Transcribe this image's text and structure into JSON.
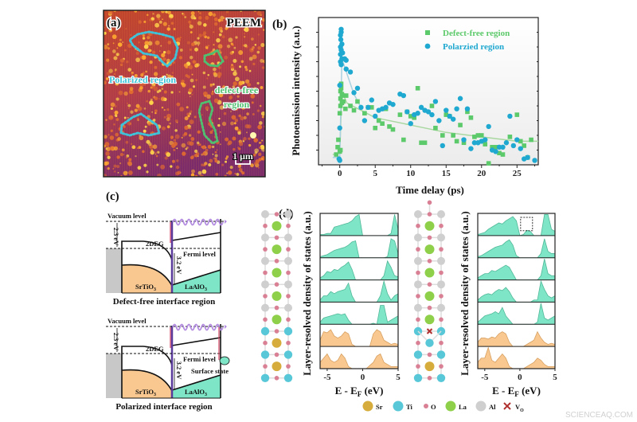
{
  "panels": {
    "a": {
      "label": "(a)",
      "title": "PEEM",
      "polarized_label": "Polarized region",
      "defect_free_label_1": "defect-free",
      "defect_free_label_2": "region",
      "scale_bar": "1 μm",
      "colors": {
        "polarized": "#3ec3d8",
        "defect_free": "#4fbf70"
      }
    },
    "b": {
      "label": "(b)"
    },
    "c": {
      "label": "(c)",
      "top": {
        "vacuum": "Vacuum level",
        "gap": "2.3 eV",
        "twodeg": "2DEG",
        "fermi": "Fermi level",
        "band": "3.2 eV",
        "sto": "SrTiO",
        "sto_sub": "3",
        "lao": "LaAlO",
        "lao_sub": "3",
        "caption": "Defect-free interface region"
      },
      "bottom": {
        "vacuum": "Vacuum level",
        "gap": "2.3 eV",
        "twodeg": "2DEG",
        "fermi": "Fermi level",
        "band": "3.2 eV",
        "surface": "Surface state",
        "sto": "SrTiO",
        "sto_sub": "3",
        "lao": "LaAlO",
        "lao_sub": "3",
        "caption": "Polarized interface region"
      },
      "colors": {
        "sto": "#f8c890",
        "lao": "#7ee6c6",
        "substrate": "#c8c8c8",
        "photon": "#b28ae0"
      }
    },
    "d": {
      "label": "(d)",
      "legend": [
        {
          "name": "Sr",
          "color": "#d6ad3c"
        },
        {
          "name": "Ti",
          "color": "#58c8d8"
        },
        {
          "name": "O",
          "color": "#d98095"
        },
        {
          "name": "La",
          "color": "#8fd04a"
        },
        {
          "name": "Al",
          "color": "#cfcfcf"
        },
        {
          "name": "V",
          "sub": "O",
          "color": "#b03030",
          "icon": "cross"
        }
      ]
    }
  },
  "chart_data": [
    {
      "type": "scatter",
      "xlabel": "Time delay (ps)",
      "ylabel": "Photoemission intensity (a.u.)",
      "xlim": [
        -3,
        28
      ],
      "ylim": [
        0,
        1
      ],
      "xticks": [
        0,
        5,
        10,
        15,
        20,
        25
      ],
      "grid": false,
      "legend_position": "top-right",
      "series": [
        {
          "name": "Defect-free region",
          "color": "#5cc96a",
          "marker": "square",
          "points": [
            [
              -0.5,
              0.07
            ],
            [
              -0.3,
              0.12
            ],
            [
              -0.2,
              0.17
            ],
            [
              0,
              0.09
            ],
            [
              0.1,
              0.1
            ],
            [
              0,
              0.35
            ],
            [
              0.1,
              0.4
            ],
            [
              0.1,
              0.45
            ],
            [
              0.1,
              0.5
            ],
            [
              0.2,
              0.52
            ],
            [
              0.2,
              0.55
            ],
            [
              0.3,
              0.48
            ],
            [
              0.3,
              0.42
            ],
            [
              0.4,
              0.47
            ],
            [
              0.5,
              0.43
            ],
            [
              0.8,
              0.38
            ],
            [
              0.9,
              0.47
            ],
            [
              1.5,
              0.4
            ],
            [
              2,
              0.37
            ],
            [
              2.5,
              0.43
            ],
            [
              3.5,
              0.35
            ],
            [
              4,
              0.39
            ],
            [
              4.5,
              0.39
            ],
            [
              5,
              0.25
            ],
            [
              5.5,
              0.3
            ],
            [
              6,
              0.28
            ],
            [
              6.5,
              0.38
            ],
            [
              7,
              0.26
            ],
            [
              7.5,
              0.24
            ],
            [
              8.5,
              0.34
            ],
            [
              9,
              0.17
            ],
            [
              9.5,
              0.36
            ],
            [
              10,
              0.33
            ],
            [
              10.5,
              0.32
            ],
            [
              11,
              0.52
            ],
            [
              11.5,
              0.15
            ],
            [
              12,
              0.15
            ],
            [
              13,
              0.4
            ],
            [
              13.5,
              0.25
            ],
            [
              14.5,
              0.2
            ],
            [
              15,
              0.34
            ],
            [
              15.5,
              0.33
            ],
            [
              16,
              0.2
            ],
            [
              16.5,
              0.16
            ],
            [
              17,
              0.27
            ],
            [
              17.5,
              0.15
            ],
            [
              18,
              0.36
            ],
            [
              18.5,
              0.32
            ],
            [
              19,
              0.19
            ],
            [
              19.5,
              0.2
            ],
            [
              20,
              0.2
            ],
            [
              20.5,
              0.14
            ],
            [
              21,
              0.01
            ],
            [
              21.5,
              0.12
            ],
            [
              22,
              0.12
            ],
            [
              22.5,
              0.08
            ],
            [
              23,
              0.07
            ],
            [
              24,
              0.19
            ],
            [
              25,
              0.34
            ],
            [
              25.5,
              0.16
            ],
            [
              26,
              0.13
            ],
            [
              26.5,
              0.05
            ],
            [
              27,
              0.17
            ]
          ],
          "fit": [
            [
              -1,
              0.07
            ],
            [
              0,
              0.08
            ],
            [
              0.3,
              0.5
            ],
            [
              1,
              0.42
            ],
            [
              3,
              0.37
            ],
            [
              5,
              0.32
            ],
            [
              10,
              0.27
            ],
            [
              15,
              0.22
            ],
            [
              20,
              0.19
            ],
            [
              25,
              0.16
            ],
            [
              28,
              0.16
            ]
          ]
        },
        {
          "name": "Polarzied region",
          "color": "#1fa8d0",
          "marker": "circle",
          "points": [
            [
              -0.1,
              0.04
            ],
            [
              0,
              0.03
            ],
            [
              0,
              0.25
            ],
            [
              0,
              0.54
            ],
            [
              0.1,
              0.7
            ],
            [
              0.1,
              0.75
            ],
            [
              0.1,
              0.8
            ],
            [
              0.15,
              0.85
            ],
            [
              0.2,
              0.9
            ],
            [
              0.2,
              0.92
            ],
            [
              0.1,
              0.88
            ],
            [
              0.2,
              0.78
            ],
            [
              0.3,
              0.82
            ],
            [
              0.3,
              0.72
            ],
            [
              0.2,
              0.68
            ],
            [
              0.4,
              0.76
            ],
            [
              0.7,
              0.72
            ],
            [
              0.9,
              0.71
            ],
            [
              0.9,
              0.65
            ],
            [
              1.5,
              0.63
            ],
            [
              2,
              0.49
            ],
            [
              2.5,
              0.52
            ],
            [
              3,
              0.39
            ],
            [
              3.5,
              0.3
            ],
            [
              4,
              0.39
            ],
            [
              4.5,
              0.44
            ],
            [
              5,
              0.33
            ],
            [
              5.5,
              0.37
            ],
            [
              6,
              0.38
            ],
            [
              6.5,
              0.39
            ],
            [
              7,
              0.42
            ],
            [
              7.5,
              0.41
            ],
            [
              8.5,
              0.48
            ],
            [
              9,
              0.47
            ],
            [
              9.5,
              0.36
            ],
            [
              10,
              0.28
            ],
            [
              10.5,
              0.34
            ],
            [
              11,
              0.35
            ],
            [
              11.5,
              0.39
            ],
            [
              12,
              0.37
            ],
            [
              12.5,
              0.36
            ],
            [
              13,
              0.34
            ],
            [
              13.5,
              0.43
            ],
            [
              14,
              0.3
            ],
            [
              14.5,
              0.13
            ],
            [
              15,
              0.37
            ],
            [
              15.5,
              0.33
            ],
            [
              16,
              0.31
            ],
            [
              16.5,
              0.38
            ],
            [
              17,
              0.45
            ],
            [
              17.5,
              0.17
            ],
            [
              18,
              0.38
            ],
            [
              18.5,
              0.11
            ],
            [
              19,
              0.15
            ],
            [
              19.5,
              0.15
            ],
            [
              20,
              0.16
            ],
            [
              20.5,
              0.17
            ],
            [
              21,
              0.26
            ],
            [
              21.5,
              0.1
            ],
            [
              22,
              0.09
            ],
            [
              22.5,
              0.12
            ],
            [
              23,
              0.12
            ],
            [
              23.5,
              0.15
            ],
            [
              24,
              0.33
            ],
            [
              24.5,
              0.13
            ],
            [
              25,
              0.17
            ],
            [
              25.5,
              0.11
            ],
            [
              26,
              0.04
            ],
            [
              26.5,
              0.05
            ],
            [
              27.5,
              0.03
            ]
          ],
          "fit": [
            [
              -1,
              0.05
            ],
            [
              0,
              0.05
            ],
            [
              0.3,
              0.72
            ],
            [
              1,
              0.62
            ],
            [
              2,
              0.48
            ],
            [
              3,
              0.39
            ]
          ]
        }
      ]
    },
    {
      "type": "area",
      "ylabel": "Layer-resolved density of states (a.u.)",
      "xlabel_main": "E - E",
      "xlabel_sub": "F",
      "xlabel_unit": " (eV)",
      "xlim": [
        -6,
        5
      ],
      "xticks": [
        -5,
        0,
        5
      ],
      "energy_step": 0.5,
      "rows": [
        {
          "color": "#7ee6c6",
          "dos": [
            0.05,
            0.05,
            0.1,
            0.1,
            0.4,
            0.45,
            0.5,
            0.55,
            0.6,
            0.7,
            0.9,
            1.0,
            0,
            0,
            0,
            0,
            0,
            0,
            0,
            0,
            0.1,
            1.0,
            0.3
          ]
        },
        {
          "color": "#7ee6c6",
          "dos": [
            0.05,
            0.1,
            0.15,
            0.25,
            0.35,
            0.4,
            0.45,
            0.5,
            0.6,
            0.75,
            0.8,
            0,
            0,
            0,
            0,
            0,
            0,
            0,
            0,
            0.05,
            0.9,
            0.8,
            0.2
          ]
        },
        {
          "color": "#7ee6c6",
          "dos": [
            0.1,
            0.2,
            0.4,
            0.35,
            0.5,
            0.45,
            0.6,
            0.7,
            0.85,
            0.5,
            0,
            0,
            0,
            0,
            0,
            0,
            0,
            0,
            0.2,
            0.9,
            0.6,
            0.2,
            0.15
          ]
        },
        {
          "color": "#7ee6c6",
          "dos": [
            0.1,
            0.3,
            0.3,
            0.5,
            0.4,
            0.5,
            0.55,
            0.6,
            0.9,
            0.3,
            0,
            0,
            0,
            0,
            0,
            0,
            0,
            0.3,
            1.0,
            0.4,
            0.1,
            0.3,
            0.4
          ]
        },
        {
          "color": "#7ee6c6",
          "dos": [
            0.1,
            0.3,
            0.35,
            0.4,
            0.45,
            0.5,
            0.45,
            0.5,
            0.2,
            0,
            0,
            0,
            0,
            0,
            0,
            0.05,
            0,
            0.9,
            0.9,
            0.1,
            0.2,
            0.3,
            0.4
          ]
        },
        {
          "color": "#f8c890",
          "dos": [
            0.3,
            0.7,
            0.65,
            0.8,
            0.5,
            0.4,
            0.5,
            0.7,
            0.6,
            0.1,
            0,
            0,
            0,
            0,
            0,
            0.6,
            0.8,
            0.7,
            0.3,
            0.2,
            0.1,
            0.15,
            0.1
          ]
        },
        {
          "color": "#f8c890",
          "dos": [
            0.3,
            0.5,
            0.7,
            0.4,
            0.3,
            0.4,
            0.7,
            0.5,
            0.1,
            0,
            0,
            0,
            0,
            0,
            0.15,
            0.3,
            0.6,
            0.7,
            0.3,
            0.2,
            0.1,
            0.1,
            0.1
          ]
        }
      ]
    },
    {
      "type": "area",
      "ylabel": "Layer-resolved density of states (a.u.)",
      "xlabel_main": "E - E",
      "xlabel_sub": "F",
      "xlabel_unit": " (eV)",
      "xlim": [
        -6,
        5
      ],
      "xticks": [
        -5,
        0,
        5
      ],
      "energy_step": 0.5,
      "highlight": {
        "x_range": [
          0.1,
          1.8
        ],
        "row": 0,
        "style": "dashed-box"
      },
      "rows": [
        {
          "color": "#7ee6c6",
          "dos": [
            0.05,
            0.1,
            0.15,
            0.3,
            0.4,
            0.5,
            0.6,
            0.55,
            0.7,
            0.8,
            0.9,
            0.7,
            0,
            0.05,
            0.25,
            0.2,
            0,
            0,
            0,
            1.0,
            1.0,
            0.3,
            0.2
          ]
        },
        {
          "color": "#7ee6c6",
          "dos": [
            0.05,
            0.1,
            0.2,
            0.3,
            0.4,
            0.5,
            0.55,
            0.6,
            0.75,
            0.85,
            0.6,
            0.1,
            0,
            0,
            0,
            0,
            0,
            0,
            0.2,
            0.9,
            0.3,
            0.2,
            0.2
          ]
        },
        {
          "color": "#7ee6c6",
          "dos": [
            0.1,
            0.2,
            0.3,
            0.3,
            0.45,
            0.4,
            0.5,
            0.6,
            0.7,
            0.6,
            0.3,
            0,
            0,
            0,
            0,
            0,
            0,
            0,
            0.2,
            1.0,
            0.3,
            0.2,
            0.2
          ]
        },
        {
          "color": "#7ee6c6",
          "dos": [
            0.1,
            0.25,
            0.35,
            0.4,
            0.35,
            0.5,
            0.6,
            0.55,
            0.7,
            0.5,
            0.2,
            0,
            0,
            0,
            0,
            0,
            0.1,
            0.1,
            1.0,
            0.6,
            0.3,
            0.2,
            0.3
          ]
        },
        {
          "color": "#7ee6c6",
          "dos": [
            0.1,
            0.25,
            0.4,
            0.45,
            0.5,
            0.6,
            0.5,
            0.8,
            0.4,
            0.2,
            0,
            0,
            0,
            0,
            0,
            0,
            0,
            0.1,
            1.0,
            0.3,
            0.2,
            0.3,
            0.4
          ]
        },
        {
          "color": "#f8c890",
          "dos": [
            0.2,
            0.4,
            0.4,
            0.35,
            0.45,
            0.4,
            0.6,
            0.7,
            0.6,
            0.2,
            0,
            0,
            0,
            0,
            0.1,
            0.2,
            0.3,
            0.7,
            0.4,
            0.2,
            0.1,
            0.15,
            0.1
          ]
        },
        {
          "color": "#f8c890",
          "dos": [
            0.3,
            0.5,
            0.5,
            1.0,
            0.4,
            0.3,
            0.5,
            0.7,
            0.5,
            0.1,
            0,
            0,
            0,
            0,
            0.1,
            0.2,
            0.3,
            0.5,
            0.4,
            0.2,
            0.1,
            0.1,
            0.1
          ]
        }
      ]
    }
  ],
  "watermark": "SCIENCEAQ.COM"
}
